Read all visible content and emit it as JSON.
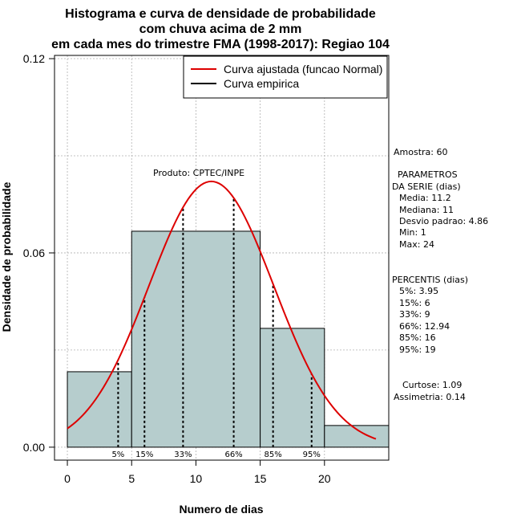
{
  "chart_data": {
    "type": "bar",
    "title_lines": [
      "Histograma e curva de densidade de probabilidade",
      "com chuva acima de 2 mm",
      "em cada mes do trimestre FMA (1998-2017): Regiao 104"
    ],
    "xlabel": "Numero de dias",
    "ylabel": "Densidade de probabilidade",
    "xlim": [
      -1,
      25
    ],
    "ylim": [
      -0.004,
      0.121
    ],
    "x_ticks": [
      0,
      5,
      10,
      15,
      20
    ],
    "y_ticks": [
      0.0,
      0.06,
      0.12
    ],
    "y_tick_labels": [
      "0.00",
      "0.06",
      "0.12"
    ],
    "bins": [
      {
        "start": 0,
        "end": 5,
        "density": 0.0233
      },
      {
        "start": 5,
        "end": 15,
        "density": 0.0667
      },
      {
        "start": 15,
        "end": 20,
        "density": 0.0367
      },
      {
        "start": 20,
        "end": 25,
        "density": 0.0067
      }
    ],
    "bar_color": "#b6cdcd",
    "normal_curve": {
      "mean": 11.2,
      "sd": 4.86,
      "x_from": 0,
      "x_to": 24,
      "color": "#dd0000"
    },
    "legend": [
      {
        "label": "Curva ajustada (funcao Normal)",
        "color": "#dd0000"
      },
      {
        "label": "Curva empirica",
        "color": "#000000"
      }
    ],
    "watermark": "Produto: CPTEC/INPE",
    "percentiles": [
      {
        "label": "5%",
        "value": 3.95
      },
      {
        "label": "15%",
        "value": 6
      },
      {
        "label": "33%",
        "value": 9
      },
      {
        "label": "66%",
        "value": 12.94
      },
      {
        "label": "85%",
        "value": 16
      },
      {
        "label": "95%",
        "value": 19
      }
    ],
    "stats_text": {
      "amostra": "Amostra: 60",
      "param_title_1": "PARAMETROS",
      "param_title_2": "DA SERIE (dias)",
      "media": "Media: 11.2",
      "mediana": "Mediana: 11",
      "desvio": "Desvio padrao: 4.86",
      "min": "Min: 1",
      "max": "Max: 24",
      "pct_title": "PERCENTIS (dias)",
      "p5": "5%: 3.95",
      "p15": "15%: 6",
      "p33": "33%: 9",
      "p66": "66%: 12.94",
      "p85": "85%: 16",
      "p95": "95%: 19",
      "curtose": "Curtose: 1.09",
      "assimetria": "Assimetria: 0.14"
    }
  }
}
